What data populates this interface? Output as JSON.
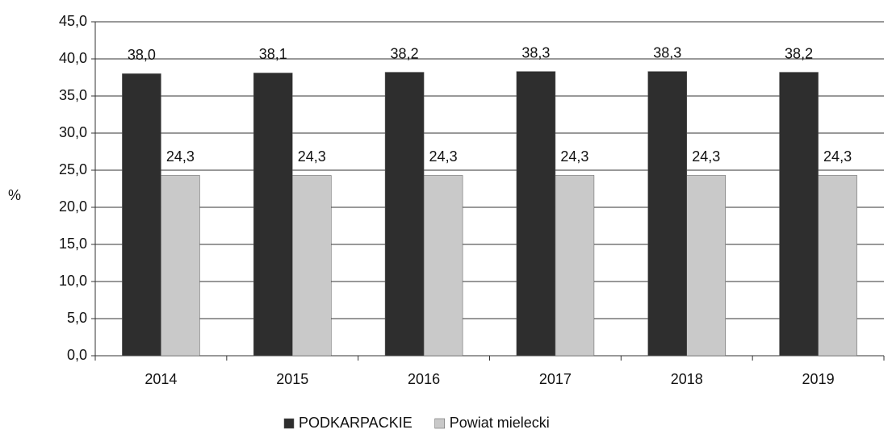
{
  "chart_data": {
    "type": "bar",
    "y_label": "%",
    "categories": [
      "2014",
      "2015",
      "2016",
      "2017",
      "2018",
      "2019"
    ],
    "series": [
      {
        "name": "PODKARPACKIE",
        "color": "#2e2e2e",
        "values": [
          38.0,
          38.1,
          38.2,
          38.3,
          38.3,
          38.2
        ],
        "value_labels": [
          "38,0",
          "38,1",
          "38,2",
          "38,3",
          "38,3",
          "38,2"
        ]
      },
      {
        "name": "Powiat mielecki",
        "color": "#c9c9c9",
        "values": [
          24.3,
          24.3,
          24.3,
          24.3,
          24.3,
          24.3
        ],
        "value_labels": [
          "24,3",
          "24,3",
          "24,3",
          "24,3",
          "24,3",
          "24,3"
        ]
      }
    ],
    "ylim": [
      0,
      45
    ],
    "yticks": [
      {
        "value": 0,
        "label": "0,0"
      },
      {
        "value": 5,
        "label": "5,0"
      },
      {
        "value": 10,
        "label": "10,0"
      },
      {
        "value": 15,
        "label": "15,0"
      },
      {
        "value": 20,
        "label": "20,0"
      },
      {
        "value": 25,
        "label": "25,0"
      },
      {
        "value": 30,
        "label": "30,0"
      },
      {
        "value": 35,
        "label": "35,0"
      },
      {
        "value": 40,
        "label": "40,0"
      },
      {
        "value": 45,
        "label": "45,0"
      }
    ],
    "grid": true,
    "legend": "bottom"
  }
}
